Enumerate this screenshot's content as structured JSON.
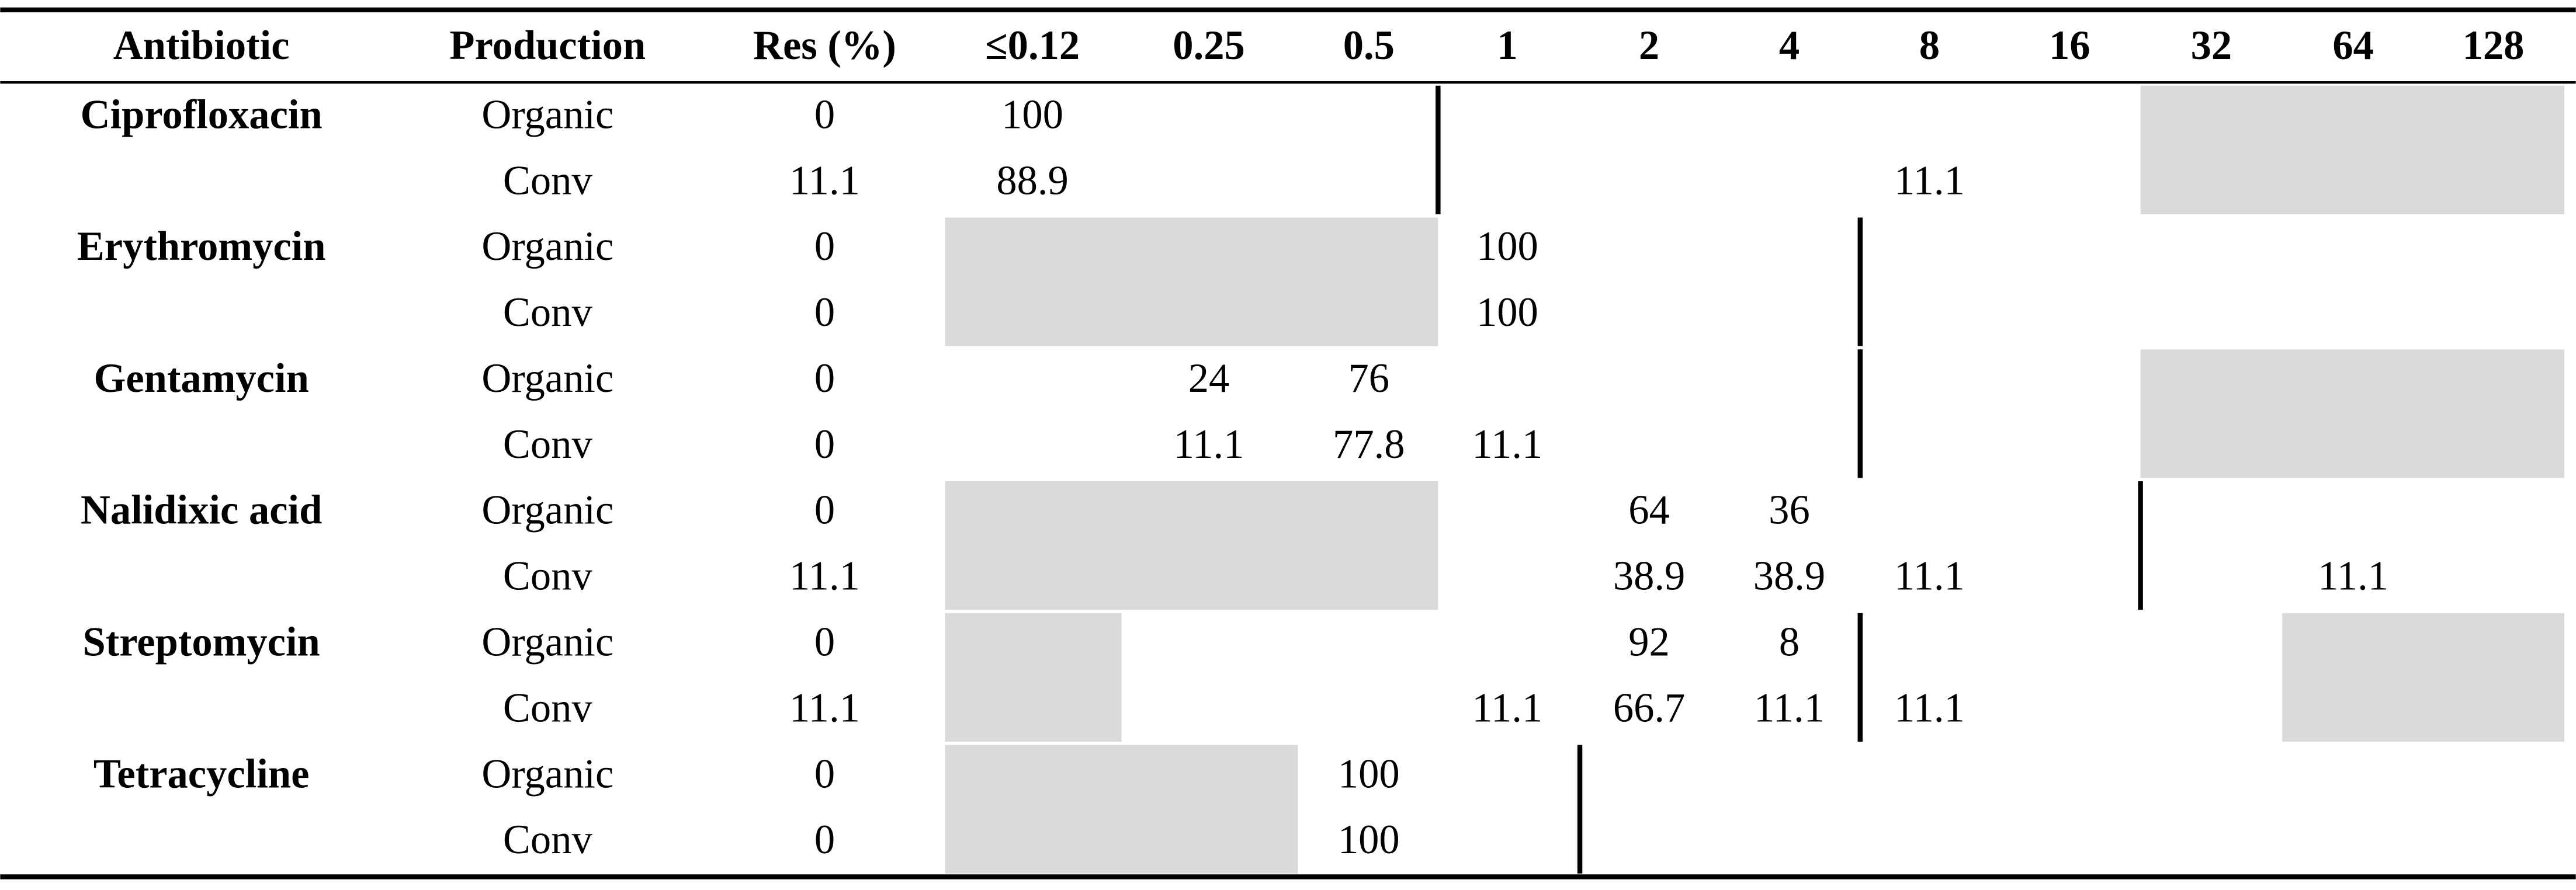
{
  "table": {
    "header": [
      "Antibiotic",
      "Production",
      "Res (%)",
      "≤0.12",
      "0.25",
      "0.5",
      "1",
      "2",
      "4",
      "8",
      "16",
      "32",
      "64",
      "128"
    ],
    "groups": [
      {
        "antibiotic": "Ciprofloxacin",
        "rows": [
          {
            "production": "Organic",
            "res": 0,
            "values": [
              100,
              null,
              null,
              null,
              null,
              null,
              null,
              null,
              null,
              null,
              null
            ]
          },
          {
            "production": "Conv",
            "res": 11.1,
            "values": [
              88.9,
              null,
              null,
              null,
              null,
              null,
              11.1,
              null,
              null,
              null,
              null
            ]
          }
        ]
      },
      {
        "antibiotic": "Erythromycin",
        "rows": [
          {
            "production": "Organic",
            "res": 0,
            "values": [
              null,
              null,
              null,
              100,
              null,
              null,
              null,
              null,
              null,
              null,
              null
            ]
          },
          {
            "production": "Conv",
            "res": 0,
            "values": [
              null,
              null,
              null,
              100,
              null,
              null,
              null,
              null,
              null,
              null,
              null
            ]
          }
        ]
      },
      {
        "antibiotic": "Gentamycin",
        "rows": [
          {
            "production": "Organic",
            "res": 0,
            "values": [
              null,
              24,
              76,
              null,
              null,
              null,
              null,
              null,
              null,
              null,
              null
            ]
          },
          {
            "production": "Conv",
            "res": 0,
            "values": [
              null,
              11.1,
              77.8,
              11.1,
              null,
              null,
              null,
              null,
              null,
              null,
              null
            ]
          }
        ]
      },
      {
        "antibiotic": "Nalidixic acid",
        "rows": [
          {
            "production": "Organic",
            "res": 0,
            "values": [
              null,
              null,
              null,
              null,
              64,
              36,
              null,
              null,
              null,
              null,
              null
            ]
          },
          {
            "production": "Conv",
            "res": 11.1,
            "values": [
              null,
              null,
              null,
              null,
              38.9,
              38.9,
              11.1,
              null,
              null,
              11.1,
              null
            ]
          }
        ]
      },
      {
        "antibiotic": "Streptomycin",
        "rows": [
          {
            "production": "Organic",
            "res": 0,
            "values": [
              null,
              null,
              null,
              null,
              92,
              8,
              null,
              null,
              null,
              null,
              null
            ]
          },
          {
            "production": "Conv",
            "res": 11.1,
            "values": [
              null,
              null,
              null,
              11.1,
              66.7,
              11.1,
              11.1,
              null,
              null,
              null,
              null
            ]
          }
        ]
      },
      {
        "antibiotic": "Tetracycline",
        "rows": [
          {
            "production": "Organic",
            "res": 0,
            "values": [
              null,
              null,
              100,
              null,
              null,
              null,
              null,
              null,
              null,
              null,
              null
            ]
          },
          {
            "production": "Conv",
            "res": 0,
            "values": [
              null,
              null,
              100,
              null,
              null,
              null,
              null,
              null,
              null,
              null,
              null
            ]
          }
        ]
      }
    ]
  }
}
